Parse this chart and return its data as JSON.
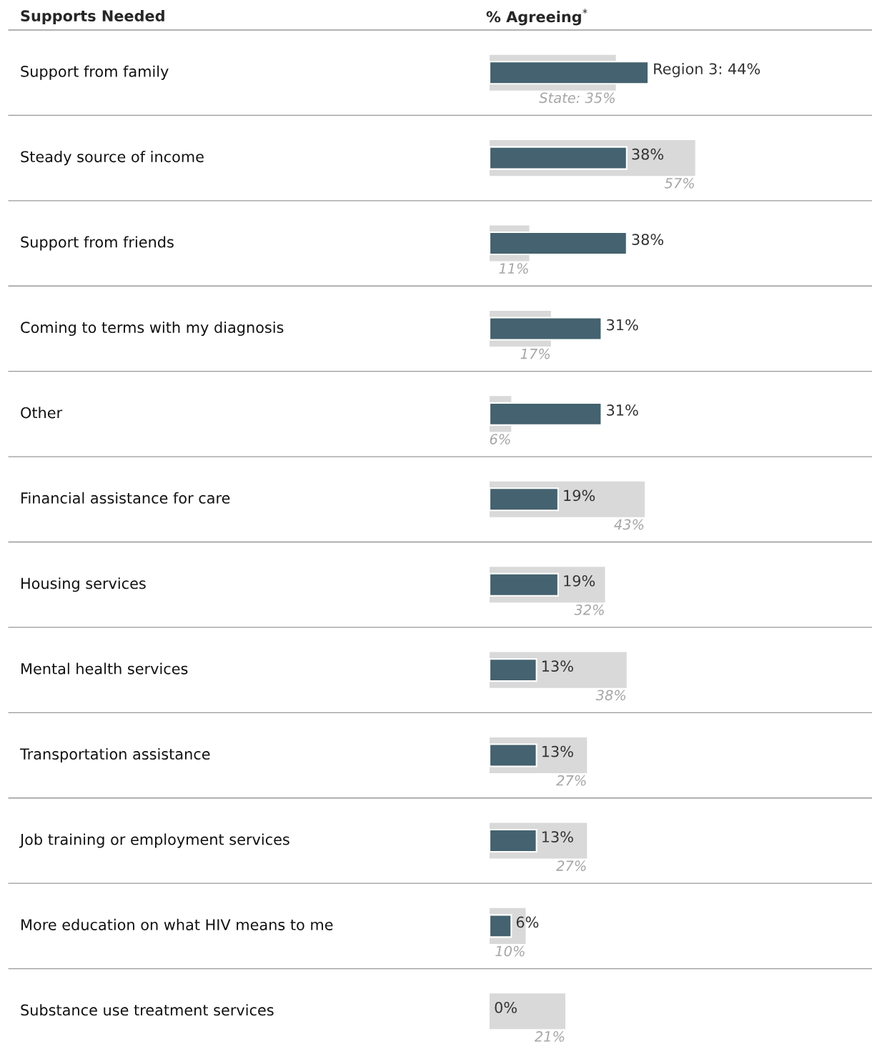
{
  "chart_data": {
    "type": "bar",
    "orientation": "horizontal",
    "ylabel": "Supports Needed",
    "xlabel": "% Agreeing$^{*}$",
    "categories": [
      "Support from family",
      "Steady source of income",
      "Support from friends",
      "Coming to terms with my diagnosis",
      "Other",
      "Financial assistance for care",
      "Housing services",
      "Mental health services",
      "Transportation assistance",
      "Job training or employment services",
      "More education on what HIV means to me",
      "Substance use treatment services"
    ],
    "xlim": [
      0,
      106
    ],
    "series": [
      {
        "color": "#d9d9d9",
        "values": [
          35,
          57,
          11,
          17,
          6,
          43,
          32,
          38,
          27,
          27,
          10,
          21
        ],
        "value_labels": [
          "State: 35%",
          "57%",
          "11%",
          "17%",
          "6%",
          "43%",
          "32%",
          "38%",
          "27%",
          "27%",
          "10%",
          "21%"
        ]
      },
      {
        "color": "#44626f",
        "values": [
          44,
          38,
          38,
          31,
          31,
          19,
          19,
          13,
          13,
          13,
          6,
          0
        ],
        "value_labels": [
          "Region 3: 44%",
          "38%",
          "38%",
          "31%",
          "31%",
          "19%",
          "19%",
          "13%",
          "13%",
          "13%",
          "6%",
          "0%"
        ]
      }
    ]
  }
}
